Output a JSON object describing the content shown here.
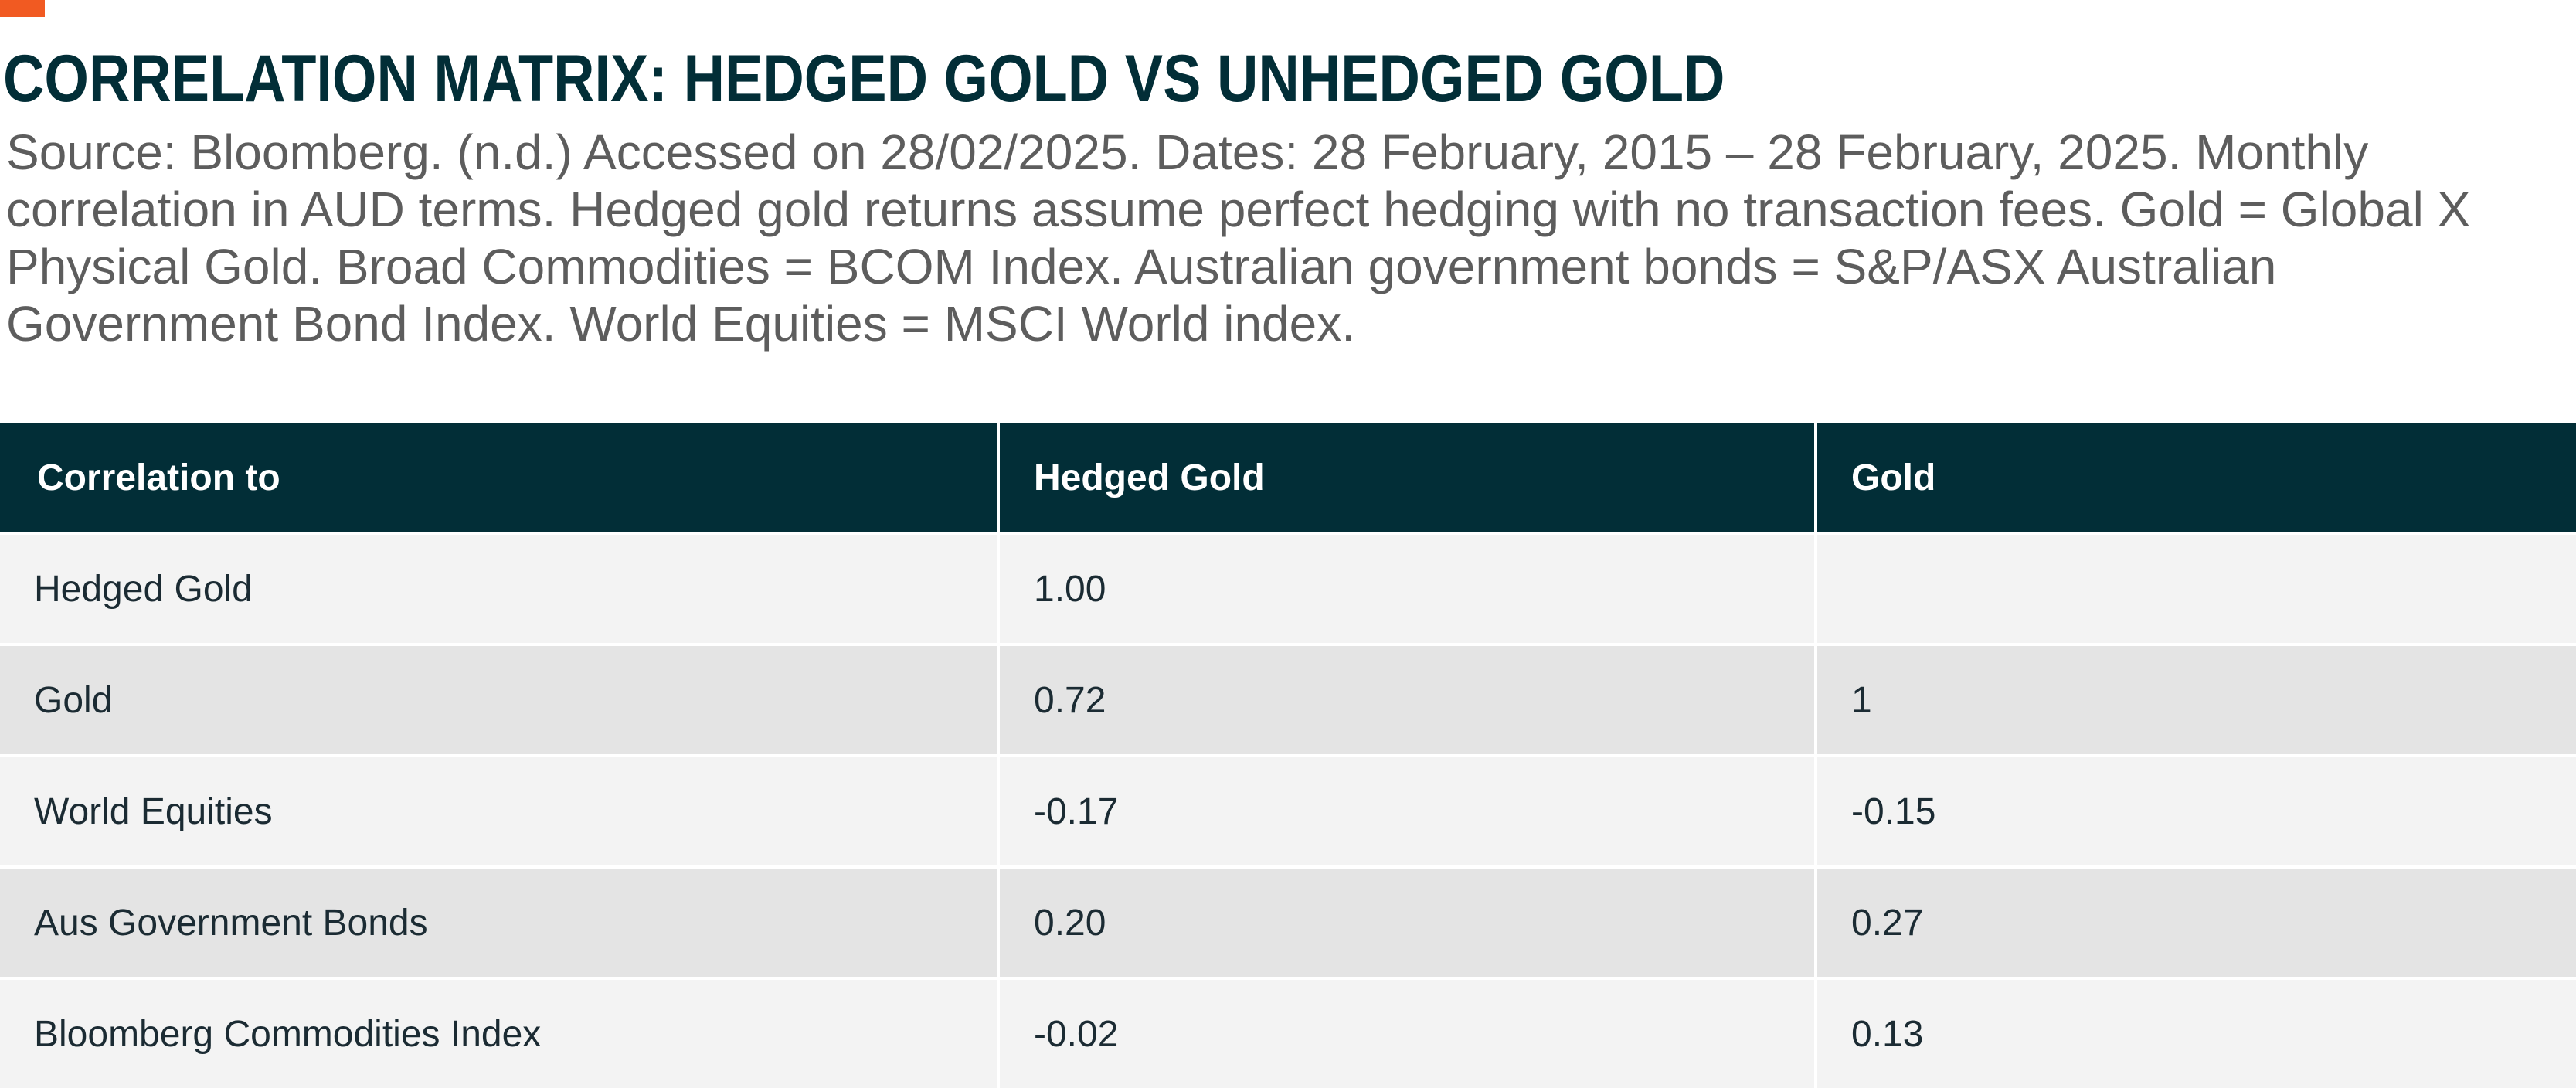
{
  "header": {
    "title": "CORRELATION MATRIX: HEDGED GOLD VS UNHEDGED GOLD",
    "source_note": "Source: Bloomberg. (n.d.) Accessed on 28/02/2025. Dates: 28 February, 2015 – 28 February, 2025. Monthly correlation in AUD terms. Hedged gold returns assume perfect hedging with no transaction fees. Gold = Global X Physical Gold. Broad Commodities = BCOM Index. Australian government bonds = S&P/ASX Australian Government Bond Index. World Equities = MSCI World index."
  },
  "colors": {
    "accent": "#f15a22",
    "header_bg": "#022e37",
    "title": "#022e37",
    "row_light": "#f3f3f3",
    "row_dark": "#e4e4e4"
  },
  "chart_data": {
    "type": "table",
    "title": "CORRELATION MATRIX: HEDGED GOLD VS UNHEDGED GOLD",
    "columns": [
      "Correlation to",
      "Hedged Gold",
      "Gold"
    ],
    "rows": [
      [
        "Hedged Gold",
        "1.00",
        ""
      ],
      [
        "Gold",
        "0.72",
        "1"
      ],
      [
        "World Equities",
        "-0.17",
        "-0.15"
      ],
      [
        "Aus Government Bonds",
        "0.20",
        "0.27"
      ],
      [
        "Bloomberg Commodities Index",
        "-0.02",
        "0.13"
      ]
    ]
  }
}
